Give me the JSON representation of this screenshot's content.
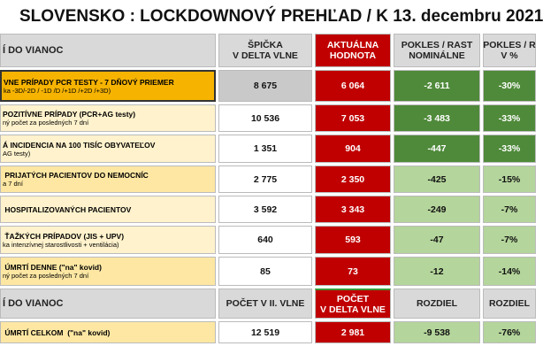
{
  "title": "SLOVENSKO : LOCKDOWNOVÝ PREHĽAD  / K 13. decembru 2021",
  "table": {
    "header": [
      "Í DO VIANOC",
      "ŠPIČKA\nV DELTA VLNE",
      "AKTUÁLNA\nHODNOTA",
      "POKLES / RAST\nNOMINÁLNE",
      "POKLES / R\nV %"
    ],
    "rows": [
      {
        "label": "VNE PRÍPADY PCR TESTY - 7 DŇOVÝ PRIEMER",
        "sub": "ka -3D/-2D / -1D /D /+1D /+2D /+3D)",
        "cells": [
          "8 675",
          "6 064",
          "-2 611",
          "-30%"
        ]
      },
      {
        "label": "POZITÍVNE PRÍPADY (PCR+AG testy)",
        "sub": "ný počet za posledných 7 dní",
        "cells": [
          "10 536",
          "7 053",
          "-3 483",
          "-33%"
        ]
      },
      {
        "label": "Á INCIDENCIA NA 100 TISÍC OBYVATEĽOV",
        "sub": "AG testy)",
        "cells": [
          "1 351",
          "904",
          "-447",
          "-33%"
        ]
      },
      {
        "label": " PRIJATÝCH PACIENTOV DO NEMOCNÍC",
        "sub": "a 7 dní",
        "cells": [
          "2 775",
          "2 350",
          "-425",
          "-15%"
        ]
      },
      {
        "label": " HOSPITALIZOVANÝCH PACIENTOV",
        "cells": [
          "3 592",
          "3 343",
          "-249",
          "-7%"
        ]
      },
      {
        "label": " ŤAŽKÝCH PRÍPADOV (JIS + UPV)",
        "sub": "ka intenzívnej starostlivosti + ventilácia)",
        "cells": [
          "640",
          "593",
          "-47",
          "-7%"
        ]
      },
      {
        "label": " ÚMRTÍ DENNE (\"na\" kovid)",
        "sub": "ný počet za posledných 7 dní",
        "cells": [
          "85",
          "73",
          "-12",
          "-14%"
        ]
      }
    ],
    "header2": [
      "Í DO VIANOC",
      "POČET V II. VLNE",
      "POČET\nV DELTA VLNE",
      "ROZDIEL",
      "ROZDIEL"
    ],
    "rows2": [
      {
        "label": " ÚMRTÍ CELKOM  (\"na\" kovid)",
        "cells": [
          "12 519",
          "2 981",
          "-9 538",
          "-76%"
        ]
      }
    ]
  }
}
